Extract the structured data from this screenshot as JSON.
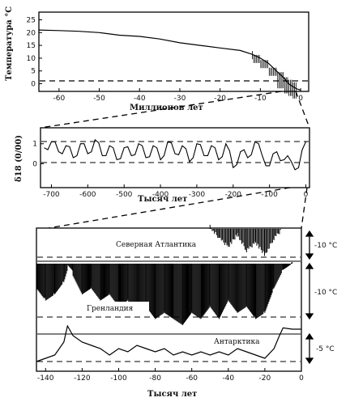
{
  "chart_data": [
    {
      "type": "line",
      "ylabel": "Температура °C",
      "xlabel": "Миллионов лет",
      "xlim": [
        -65,
        2
      ],
      "ylim": [
        -3,
        28
      ],
      "x_ticks": [
        "-60",
        "-50",
        "-40",
        "-30",
        "-20",
        "-10",
        "0"
      ],
      "y_ticks": [
        "25",
        "20",
        "15",
        "10",
        "5",
        "0"
      ],
      "reference_line_y": 0,
      "series": [
        {
          "x": [
            -65,
            -60,
            -55,
            -50,
            -45,
            -40,
            -35,
            -30,
            -25,
            -20,
            -15,
            -12,
            -10,
            -8,
            -6,
            -4,
            -3,
            -2,
            -1,
            0
          ],
          "values": [
            21,
            20.8,
            20.5,
            20,
            19,
            18.5,
            17.5,
            16,
            15,
            14,
            13,
            11.5,
            10,
            8,
            5,
            2,
            0,
            -1,
            -2,
            -2.5
          ]
        }
      ]
    },
    {
      "type": "line",
      "ylabel": "δ18 (0/00)",
      "xlabel": "Тысяч лет",
      "xlim": [
        -730,
        10
      ],
      "ylim": [
        -1.2,
        1.8
      ],
      "x_ticks": [
        "-700",
        "-600",
        "-500",
        "-400",
        "-300",
        "-200",
        "-100",
        "0"
      ],
      "y_ticks": [
        "1",
        "0"
      ],
      "reference_lines_y": [
        1,
        0
      ],
      "series": [
        {
          "x": [
            -720,
            -700,
            -680,
            -660,
            -640,
            -620,
            -600,
            -580,
            -560,
            -540,
            -520,
            -500,
            -480,
            -460,
            -440,
            -420,
            -400,
            -380,
            -360,
            -340,
            -320,
            -300,
            -280,
            -260,
            -240,
            -220,
            -200,
            -180,
            -160,
            -140,
            -120,
            -100,
            -80,
            -60,
            -40,
            -20,
            0
          ],
          "values": [
            0.8,
            1.1,
            0.6,
            0.9,
            0.3,
            1.0,
            0.5,
            1.2,
            0.4,
            0.9,
            0.2,
            0.8,
            0.4,
            1.0,
            0.3,
            0.9,
            0.2,
            1.1,
            0.5,
            0.9,
            0.1,
            1.0,
            0.4,
            0.9,
            0.2,
            1.0,
            -0.2,
            0.6,
            0.3,
            1.1,
            0.4,
            -0.1,
            0.6,
            0.2,
            0.1,
            -0.2,
            1.1
          ]
        }
      ]
    },
    {
      "type": "line",
      "xlabel": "Тысяч лет",
      "xlim": [
        -145,
        0
      ],
      "x_ticks": [
        "-140",
        "-120",
        "-100",
        "-80",
        "-60",
        "-40",
        "-20",
        "0"
      ],
      "series": [
        {
          "name": "Северная Атлантика",
          "amplitude_label": "-10 °C",
          "x": [
            -50,
            -45,
            -40,
            -35,
            -30,
            -25,
            -20,
            -15,
            -11
          ],
          "values": [
            0,
            -3,
            -5,
            -2,
            -6,
            -4,
            -7,
            -3,
            -1
          ]
        },
        {
          "name": "Гренландия",
          "amplitude_label": "-10 °C",
          "x": [
            -145,
            -140,
            -135,
            -130,
            -128,
            -125,
            -120,
            -115,
            -110,
            -105,
            -100,
            -95,
            -90,
            -85,
            -80,
            -75,
            -70,
            -65,
            -60,
            -55,
            -50,
            -45,
            -40,
            -35,
            -30,
            -25,
            -20,
            -15,
            -10,
            -5,
            0
          ],
          "values": [
            -4,
            -6,
            -5,
            -3,
            -1,
            -2,
            -5,
            -4,
            -6,
            -5,
            -7,
            -6,
            -8,
            -7,
            -9,
            -8,
            -9,
            -10,
            -8,
            -9,
            -7,
            -9,
            -6,
            -8,
            -7,
            -9,
            -8,
            -4,
            -1,
            0,
            0
          ]
        },
        {
          "name": "Антарктика",
          "amplitude_label": "-5 °C",
          "x": [
            -145,
            -140,
            -135,
            -130,
            -128,
            -125,
            -120,
            -115,
            -110,
            -105,
            -100,
            -95,
            -90,
            -85,
            -80,
            -75,
            -70,
            -65,
            -60,
            -55,
            -50,
            -45,
            -40,
            -35,
            -30,
            -25,
            -20,
            -15,
            -12,
            -10,
            -5,
            0
          ],
          "values": [
            -5,
            -4.5,
            -4,
            -2,
            0.5,
            -1,
            -2,
            -2.5,
            -3,
            -4,
            -3,
            -3.5,
            -2.5,
            -3,
            -3.5,
            -3,
            -4,
            -3.5,
            -4,
            -3.5,
            -4,
            -3.5,
            -4,
            -3,
            -3.5,
            -4,
            -4.5,
            -3,
            -1,
            0.2,
            0,
            0
          ]
        }
      ]
    }
  ]
}
